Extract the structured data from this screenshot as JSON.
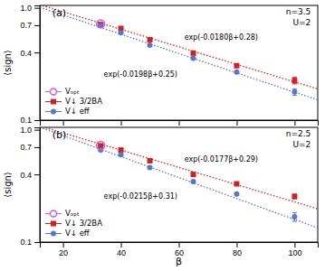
{
  "chart_data": [
    {
      "type": "scatter",
      "log": "y",
      "grid": false,
      "legend": "lower left",
      "tick_labels": "y",
      "y_label": "⟨sign⟩",
      "annotations": [
        "(a)",
        "n=3.5",
        "U=2",
        "exp(-0.0198β+0.25)",
        "exp(-0.0180β+0.28)"
      ],
      "xlim": [
        12,
        108
      ],
      "xticks": [
        20,
        40,
        60,
        80,
        100
      ],
      "ylim": [
        0.1,
        1.05
      ],
      "yticks": [
        0.1,
        0.4,
        0.7,
        {
          "value": 1,
          "label": "1.0"
        }
      ],
      "series": [
        {
          "type": "line",
          "line_style": "dotted",
          "color": "#5577cc",
          "x": [
            12,
            108
          ],
          "values": [
            1.0124772,
            0.1513137
          ]
        },
        {
          "type": "line",
          "line_style": "dotted",
          "color": "#cc2222",
          "x": [
            13,
            108
          ],
          "values": [
            1.0470744,
            0.1893799
          ]
        },
        {
          "name": "Vₒₚₜ",
          "type": "scatter",
          "marker": "circle-open",
          "color": "#dd55dd",
          "x": [
            33
          ],
          "values": [
            0.72
          ]
        },
        {
          "name": "V↓ 3/2BA",
          "type": "scatter",
          "marker": "square",
          "color": "#cc2222",
          "x": [
            33,
            40,
            50,
            65,
            80,
            100
          ],
          "values": [
            0.71,
            0.655,
            0.52,
            0.395,
            0.305,
            0.225
          ],
          "yerr": [
            0.004,
            0.004,
            0.004,
            0.005,
            0.006,
            0.015
          ]
        },
        {
          "name": "V↓ eff",
          "type": "scatter",
          "marker": "circle",
          "color": "#5577cc",
          "x": [
            33,
            40,
            50,
            65,
            80,
            100
          ],
          "values": [
            0.695,
            0.6,
            0.465,
            0.355,
            0.268,
            0.178
          ],
          "yerr": [
            0.004,
            0.004,
            0.004,
            0.005,
            0.006,
            0.012
          ]
        }
      ]
    },
    {
      "type": "scatter",
      "log": "y",
      "grid": false,
      "legend": "lower left",
      "y_label": "⟨sign⟩",
      "x_label": "β",
      "annotations": [
        "(b)",
        "n=2.5",
        "U=2",
        "exp(-0.0215β+0.31)",
        "exp(-0.0177β+0.29)"
      ],
      "xlim": [
        12,
        108
      ],
      "xticks": [
        20,
        40,
        60,
        80,
        100
      ],
      "ylim": [
        0.1,
        1.05
      ],
      "yticks": [
        0.1,
        0.4,
        0.7,
        {
          "value": 1,
          "label": "1.0"
        }
      ],
      "series": [
        {
          "type": "line",
          "line_style": "dotted",
          "color": "#5577cc",
          "x": [
            13,
            108
          ],
          "values": [
            1.0309698,
            0.133721
          ]
        },
        {
          "type": "line",
          "line_style": "dotted",
          "color": "#cc2222",
          "x": [
            14,
            108
          ],
          "values": [
            1.0431031,
            0.1975823
          ]
        },
        {
          "name": "Vₒₚₜ",
          "type": "scatter",
          "marker": "circle-open",
          "color": "#dd55dd",
          "x": [
            33
          ],
          "values": [
            0.725
          ]
        },
        {
          "name": "V↓ 3/2BA",
          "type": "scatter",
          "marker": "square",
          "color": "#cc2222",
          "x": [
            33,
            40,
            50,
            65,
            80,
            100
          ],
          "values": [
            0.72,
            0.66,
            0.53,
            0.4,
            0.33,
            0.255
          ],
          "yerr": [
            0.004,
            0.004,
            0.004,
            0.005,
            0.006,
            0.012
          ]
        },
        {
          "name": "V↓ eff",
          "type": "scatter",
          "marker": "circle",
          "color": "#5577cc",
          "x": [
            33,
            40,
            50,
            65,
            80,
            100
          ],
          "values": [
            0.66,
            0.6,
            0.46,
            0.345,
            0.268,
            0.168
          ],
          "yerr": [
            0.004,
            0.004,
            0.004,
            0.005,
            0.006,
            0.015
          ]
        }
      ]
    }
  ]
}
